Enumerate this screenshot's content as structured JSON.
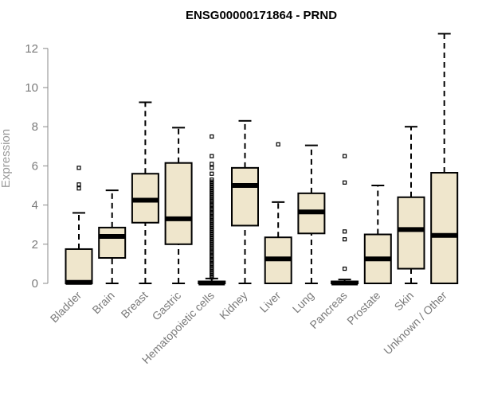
{
  "chart_data": {
    "type": "boxplot",
    "title": "ENSG00000171864 - PRND",
    "xlabel": "",
    "ylabel": "Expression",
    "ylim": [
      0,
      12.5
    ],
    "yticks": [
      0,
      2,
      4,
      6,
      8,
      10,
      12
    ],
    "grid": false,
    "colors": {
      "box_fill": "#efe6cc",
      "stroke": "#000000",
      "axis": "#8a8a8a",
      "tick_text": "#7a7a7a"
    },
    "categories": [
      "Bladder",
      "Brain",
      "Breast",
      "Gastric",
      "Hematopoietic cells",
      "Kidney",
      "Liver",
      "Lung",
      "Pancreas",
      "Prostate",
      "Skin",
      "Unknown / Other"
    ],
    "boxes": [
      {
        "category": "Bladder",
        "whisker_low": 0.0,
        "q1": 0.0,
        "median": 0.05,
        "q3": 1.75,
        "whisker_high": 3.6,
        "outliers": [
          4.85,
          5.05,
          5.9
        ]
      },
      {
        "category": "Brain",
        "whisker_low": 0.0,
        "q1": 1.3,
        "median": 2.4,
        "q3": 2.85,
        "whisker_high": 4.75,
        "outliers": []
      },
      {
        "category": "Breast",
        "whisker_low": 0.0,
        "q1": 3.1,
        "median": 4.25,
        "q3": 5.6,
        "whisker_high": 9.25,
        "outliers": []
      },
      {
        "category": "Gastric",
        "whisker_low": 0.0,
        "q1": 2.0,
        "median": 3.3,
        "q3": 6.15,
        "whisker_high": 7.95,
        "outliers": []
      },
      {
        "category": "Hematopoietic cells",
        "whisker_low": 0.0,
        "q1": 0.0,
        "median": 0.02,
        "q3": 0.1,
        "whisker_high": 0.25,
        "outliers": [
          0.3,
          0.4,
          0.5,
          0.6,
          0.7,
          0.8,
          0.9,
          1.0,
          1.1,
          1.2,
          1.3,
          1.4,
          1.5,
          1.6,
          1.7,
          1.8,
          1.9,
          2.0,
          2.1,
          2.2,
          2.3,
          2.4,
          2.5,
          2.6,
          2.7,
          2.8,
          2.9,
          3.0,
          3.1,
          3.2,
          3.3,
          3.4,
          3.5,
          3.6,
          3.7,
          3.8,
          3.9,
          4.0,
          4.1,
          4.2,
          4.3,
          4.4,
          4.5,
          4.6,
          4.7,
          4.8,
          4.9,
          5.0,
          5.1,
          5.2,
          5.3,
          5.6,
          5.9,
          6.1,
          6.5,
          7.5
        ]
      },
      {
        "category": "Kidney",
        "whisker_low": 0.0,
        "q1": 2.95,
        "median": 5.0,
        "q3": 5.9,
        "whisker_high": 8.3,
        "outliers": []
      },
      {
        "category": "Liver",
        "whisker_low": 0.0,
        "q1": 0.0,
        "median": 1.25,
        "q3": 2.35,
        "whisker_high": 4.15,
        "outliers": [
          7.1
        ]
      },
      {
        "category": "Lung",
        "whisker_low": 0.0,
        "q1": 2.55,
        "median": 3.65,
        "q3": 4.6,
        "whisker_high": 7.05,
        "outliers": []
      },
      {
        "category": "Pancreas",
        "whisker_low": 0.0,
        "q1": 0.0,
        "median": 0.02,
        "q3": 0.1,
        "whisker_high": 0.2,
        "outliers": [
          0.75,
          2.25,
          2.65,
          5.15,
          6.5
        ]
      },
      {
        "category": "Prostate",
        "whisker_low": 0.0,
        "q1": 0.0,
        "median": 1.25,
        "q3": 2.5,
        "whisker_high": 5.0,
        "outliers": []
      },
      {
        "category": "Skin",
        "whisker_low": 0.0,
        "q1": 0.75,
        "median": 2.75,
        "q3": 4.4,
        "whisker_high": 8.0,
        "outliers": []
      },
      {
        "category": "Unknown / Other",
        "whisker_low": 0.0,
        "q1": 0.0,
        "median": 2.45,
        "q3": 5.65,
        "whisker_high": 12.75,
        "outliers": []
      }
    ]
  }
}
